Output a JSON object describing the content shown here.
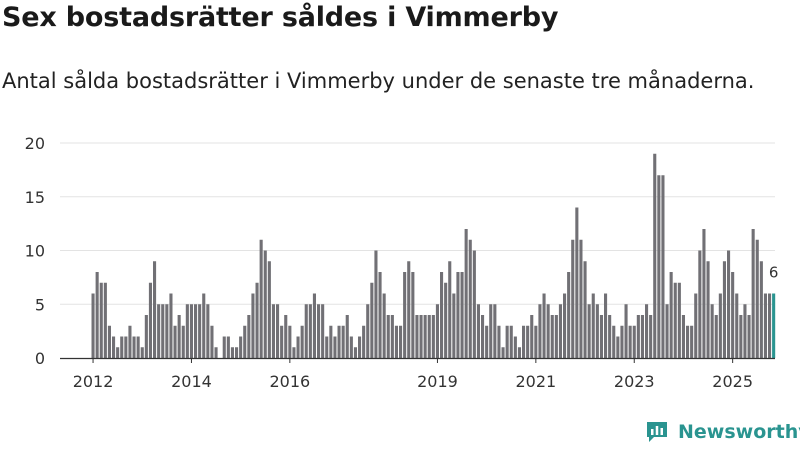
{
  "header": {
    "title": "Sex bostadsrätter såldes i Vimmerby",
    "subtitle": "Antal sålda bostadsrätter i Vimmerby under de senaste tre månaderna."
  },
  "brand": {
    "name": "Newsworthy",
    "icon": "newsworthy-logo-icon"
  },
  "colors": {
    "bar": "#717075",
    "highlight": "#2a9490",
    "grid": "#e3e3e3",
    "axis": "#333333",
    "text": "#333333"
  },
  "chart_data": {
    "type": "bar",
    "title": "Sex bostadsrätter såldes i Vimmerby",
    "subtitle": "Antal sålda bostadsrätter i Vimmerby under de senaste tre månaderna.",
    "xlabel": "",
    "ylabel": "",
    "ylim": [
      0,
      20
    ],
    "yticks": [
      0,
      5,
      10,
      15,
      20
    ],
    "grid": true,
    "x_start_year": 2012,
    "x_start_month": 1,
    "x_tick_labels": [
      "2012",
      "2014",
      "2016",
      "2019",
      "2021",
      "2023",
      "2025"
    ],
    "x_tick_years": [
      2012,
      2014,
      2016,
      2019,
      2021,
      2023,
      2025
    ],
    "highlight_last": true,
    "last_value_label": "6",
    "values": [
      6,
      8,
      7,
      7,
      3,
      2,
      1,
      2,
      2,
      3,
      2,
      2,
      1,
      4,
      7,
      9,
      5,
      5,
      5,
      6,
      3,
      4,
      3,
      5,
      5,
      5,
      5,
      6,
      5,
      3,
      1,
      0,
      2,
      2,
      1,
      1,
      2,
      3,
      4,
      6,
      7,
      11,
      10,
      9,
      5,
      5,
      3,
      4,
      3,
      1,
      2,
      3,
      5,
      5,
      6,
      5,
      5,
      2,
      3,
      2,
      3,
      3,
      4,
      2,
      1,
      2,
      3,
      5,
      7,
      10,
      8,
      6,
      4,
      4,
      3,
      3,
      8,
      9,
      8,
      4,
      4,
      4,
      4,
      4,
      5,
      8,
      7,
      9,
      6,
      8,
      8,
      12,
      11,
      10,
      5,
      4,
      3,
      5,
      5,
      3,
      1,
      3,
      3,
      2,
      1,
      3,
      3,
      4,
      3,
      5,
      6,
      5,
      4,
      4,
      5,
      6,
      8,
      11,
      14,
      11,
      9,
      5,
      6,
      5,
      4,
      6,
      4,
      3,
      2,
      3,
      5,
      3,
      3,
      4,
      4,
      5,
      4,
      19,
      17,
      17,
      5,
      8,
      7,
      7,
      4,
      3,
      3,
      6,
      10,
      12,
      9,
      5,
      4,
      6,
      9,
      10,
      8,
      6,
      4,
      5,
      4,
      12,
      11,
      9,
      6,
      6,
      6
    ]
  }
}
